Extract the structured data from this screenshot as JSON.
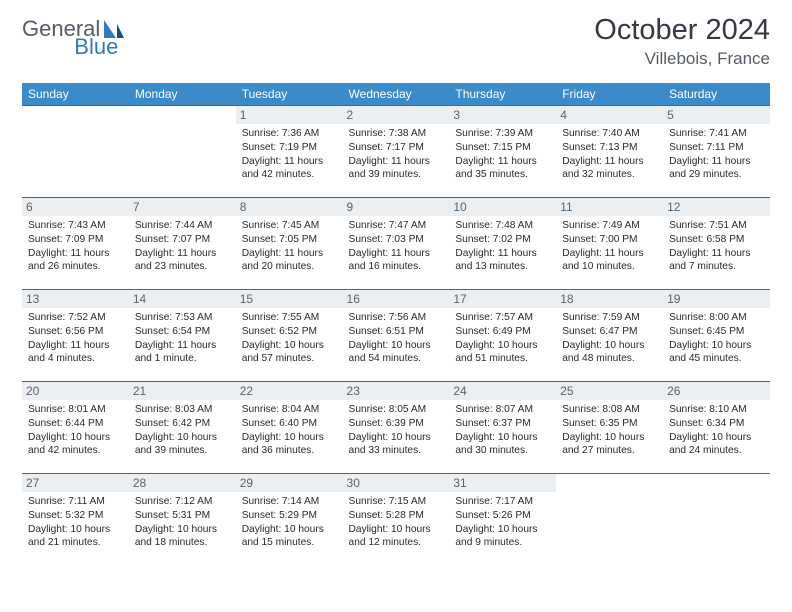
{
  "logo": {
    "word1": "General",
    "word2": "Blue"
  },
  "title": "October 2024",
  "location": "Villebois, France",
  "colors": {
    "header_bg": "#3b8bca",
    "header_fg": "#ffffff",
    "daynum_bg": "#eceff1",
    "row_border": "#2f6aa0",
    "logo_gray": "#555d66",
    "logo_blue": "#2f7bbf"
  },
  "weekdays": [
    "Sunday",
    "Monday",
    "Tuesday",
    "Wednesday",
    "Thursday",
    "Friday",
    "Saturday"
  ],
  "weeks": [
    [
      null,
      null,
      {
        "n": "1",
        "sr": "Sunrise: 7:36 AM",
        "ss": "Sunset: 7:19 PM",
        "dl": "Daylight: 11 hours and 42 minutes."
      },
      {
        "n": "2",
        "sr": "Sunrise: 7:38 AM",
        "ss": "Sunset: 7:17 PM",
        "dl": "Daylight: 11 hours and 39 minutes."
      },
      {
        "n": "3",
        "sr": "Sunrise: 7:39 AM",
        "ss": "Sunset: 7:15 PM",
        "dl": "Daylight: 11 hours and 35 minutes."
      },
      {
        "n": "4",
        "sr": "Sunrise: 7:40 AM",
        "ss": "Sunset: 7:13 PM",
        "dl": "Daylight: 11 hours and 32 minutes."
      },
      {
        "n": "5",
        "sr": "Sunrise: 7:41 AM",
        "ss": "Sunset: 7:11 PM",
        "dl": "Daylight: 11 hours and 29 minutes."
      }
    ],
    [
      {
        "n": "6",
        "sr": "Sunrise: 7:43 AM",
        "ss": "Sunset: 7:09 PM",
        "dl": "Daylight: 11 hours and 26 minutes."
      },
      {
        "n": "7",
        "sr": "Sunrise: 7:44 AM",
        "ss": "Sunset: 7:07 PM",
        "dl": "Daylight: 11 hours and 23 minutes."
      },
      {
        "n": "8",
        "sr": "Sunrise: 7:45 AM",
        "ss": "Sunset: 7:05 PM",
        "dl": "Daylight: 11 hours and 20 minutes."
      },
      {
        "n": "9",
        "sr": "Sunrise: 7:47 AM",
        "ss": "Sunset: 7:03 PM",
        "dl": "Daylight: 11 hours and 16 minutes."
      },
      {
        "n": "10",
        "sr": "Sunrise: 7:48 AM",
        "ss": "Sunset: 7:02 PM",
        "dl": "Daylight: 11 hours and 13 minutes."
      },
      {
        "n": "11",
        "sr": "Sunrise: 7:49 AM",
        "ss": "Sunset: 7:00 PM",
        "dl": "Daylight: 11 hours and 10 minutes."
      },
      {
        "n": "12",
        "sr": "Sunrise: 7:51 AM",
        "ss": "Sunset: 6:58 PM",
        "dl": "Daylight: 11 hours and 7 minutes."
      }
    ],
    [
      {
        "n": "13",
        "sr": "Sunrise: 7:52 AM",
        "ss": "Sunset: 6:56 PM",
        "dl": "Daylight: 11 hours and 4 minutes."
      },
      {
        "n": "14",
        "sr": "Sunrise: 7:53 AM",
        "ss": "Sunset: 6:54 PM",
        "dl": "Daylight: 11 hours and 1 minute."
      },
      {
        "n": "15",
        "sr": "Sunrise: 7:55 AM",
        "ss": "Sunset: 6:52 PM",
        "dl": "Daylight: 10 hours and 57 minutes."
      },
      {
        "n": "16",
        "sr": "Sunrise: 7:56 AM",
        "ss": "Sunset: 6:51 PM",
        "dl": "Daylight: 10 hours and 54 minutes."
      },
      {
        "n": "17",
        "sr": "Sunrise: 7:57 AM",
        "ss": "Sunset: 6:49 PM",
        "dl": "Daylight: 10 hours and 51 minutes."
      },
      {
        "n": "18",
        "sr": "Sunrise: 7:59 AM",
        "ss": "Sunset: 6:47 PM",
        "dl": "Daylight: 10 hours and 48 minutes."
      },
      {
        "n": "19",
        "sr": "Sunrise: 8:00 AM",
        "ss": "Sunset: 6:45 PM",
        "dl": "Daylight: 10 hours and 45 minutes."
      }
    ],
    [
      {
        "n": "20",
        "sr": "Sunrise: 8:01 AM",
        "ss": "Sunset: 6:44 PM",
        "dl": "Daylight: 10 hours and 42 minutes."
      },
      {
        "n": "21",
        "sr": "Sunrise: 8:03 AM",
        "ss": "Sunset: 6:42 PM",
        "dl": "Daylight: 10 hours and 39 minutes."
      },
      {
        "n": "22",
        "sr": "Sunrise: 8:04 AM",
        "ss": "Sunset: 6:40 PM",
        "dl": "Daylight: 10 hours and 36 minutes."
      },
      {
        "n": "23",
        "sr": "Sunrise: 8:05 AM",
        "ss": "Sunset: 6:39 PM",
        "dl": "Daylight: 10 hours and 33 minutes."
      },
      {
        "n": "24",
        "sr": "Sunrise: 8:07 AM",
        "ss": "Sunset: 6:37 PM",
        "dl": "Daylight: 10 hours and 30 minutes."
      },
      {
        "n": "25",
        "sr": "Sunrise: 8:08 AM",
        "ss": "Sunset: 6:35 PM",
        "dl": "Daylight: 10 hours and 27 minutes."
      },
      {
        "n": "26",
        "sr": "Sunrise: 8:10 AM",
        "ss": "Sunset: 6:34 PM",
        "dl": "Daylight: 10 hours and 24 minutes."
      }
    ],
    [
      {
        "n": "27",
        "sr": "Sunrise: 7:11 AM",
        "ss": "Sunset: 5:32 PM",
        "dl": "Daylight: 10 hours and 21 minutes."
      },
      {
        "n": "28",
        "sr": "Sunrise: 7:12 AM",
        "ss": "Sunset: 5:31 PM",
        "dl": "Daylight: 10 hours and 18 minutes."
      },
      {
        "n": "29",
        "sr": "Sunrise: 7:14 AM",
        "ss": "Sunset: 5:29 PM",
        "dl": "Daylight: 10 hours and 15 minutes."
      },
      {
        "n": "30",
        "sr": "Sunrise: 7:15 AM",
        "ss": "Sunset: 5:28 PM",
        "dl": "Daylight: 10 hours and 12 minutes."
      },
      {
        "n": "31",
        "sr": "Sunrise: 7:17 AM",
        "ss": "Sunset: 5:26 PM",
        "dl": "Daylight: 10 hours and 9 minutes."
      },
      null,
      null
    ]
  ]
}
